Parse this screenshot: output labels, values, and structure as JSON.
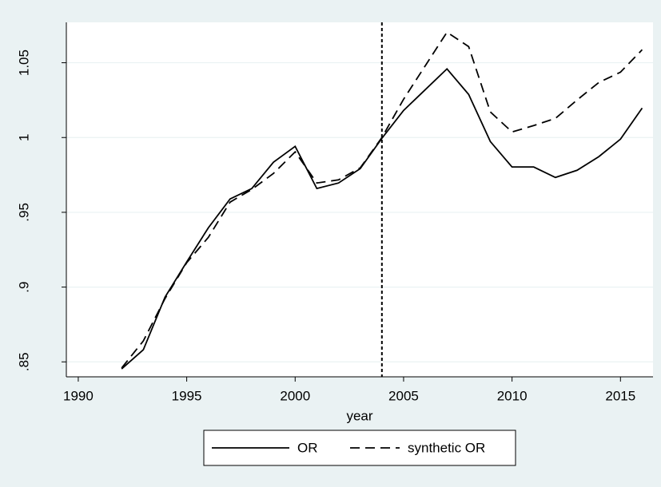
{
  "chart_data": {
    "type": "line",
    "x_label": "year",
    "x": [
      1992,
      1993,
      1994,
      1995,
      1996,
      1997,
      1998,
      1999,
      2000,
      2001,
      2002,
      2003,
      2004,
      2005,
      2006,
      2007,
      2008,
      2009,
      2010,
      2011,
      2012,
      2013,
      2014,
      2015,
      2016
    ],
    "series": [
      {
        "name": "OR",
        "color": "#000000",
        "line_style": "solid",
        "values": [
          0.8453,
          0.8581,
          0.8933,
          0.9168,
          0.9397,
          0.9589,
          0.9659,
          0.9835,
          0.9941,
          0.9659,
          0.9696,
          0.9792,
          0.9995,
          1.0181,
          1.032,
          1.0459,
          1.0288,
          0.9973,
          0.9803,
          0.9803,
          0.9733,
          0.9781,
          0.9872,
          0.9989,
          1.0197
        ]
      },
      {
        "name": "synthetic OR",
        "color": "#000000",
        "line_style": "dashed",
        "values": [
          0.8459,
          0.864,
          0.8923,
          0.9163,
          0.9333,
          0.9568,
          0.9653,
          0.976,
          0.9904,
          0.9696,
          0.9717,
          0.9797,
          1.0,
          1.0256,
          1.048,
          1.0704,
          1.0608,
          1.0171,
          1.0037,
          1.008,
          1.0128,
          1.0251,
          1.0368,
          1.0437,
          1.0587
        ]
      }
    ],
    "xlim": [
      1989.45,
      2016.5
    ],
    "xticks": [
      1990,
      1995,
      2000,
      2005,
      2010,
      2015
    ],
    "ylim": [
      0.84,
      1.077
    ],
    "yticks": [
      {
        "value": 0.85,
        "label": ".85"
      },
      {
        "value": 0.9,
        "label": ".9"
      },
      {
        "value": 0.95,
        "label": ".95"
      },
      1,
      1.05
    ],
    "grid": true,
    "vline": 2004,
    "legend": "bottom"
  }
}
